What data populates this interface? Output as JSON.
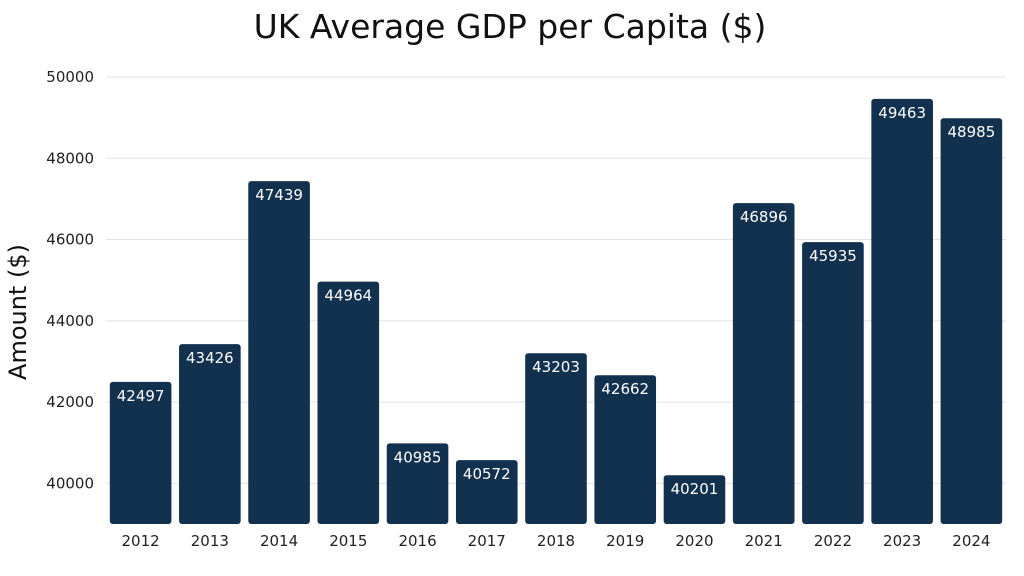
{
  "chart_data": {
    "type": "bar",
    "title": "UK Average GDP per Capita ($)",
    "xlabel": "",
    "ylabel": "Amount ($)",
    "categories": [
      "2012",
      "2013",
      "2014",
      "2015",
      "2016",
      "2017",
      "2018",
      "2019",
      "2020",
      "2021",
      "2022",
      "2023",
      "2024"
    ],
    "values": [
      42497,
      43426,
      47439,
      44964,
      40985,
      40572,
      43203,
      42662,
      40201,
      46896,
      45935,
      49463,
      48985
    ],
    "ylim": [
      39000,
      50000
    ],
    "yticks": [
      40000,
      42000,
      44000,
      46000,
      48000,
      50000
    ],
    "grid": true,
    "legend": "none",
    "bar_color": "#12314f"
  }
}
